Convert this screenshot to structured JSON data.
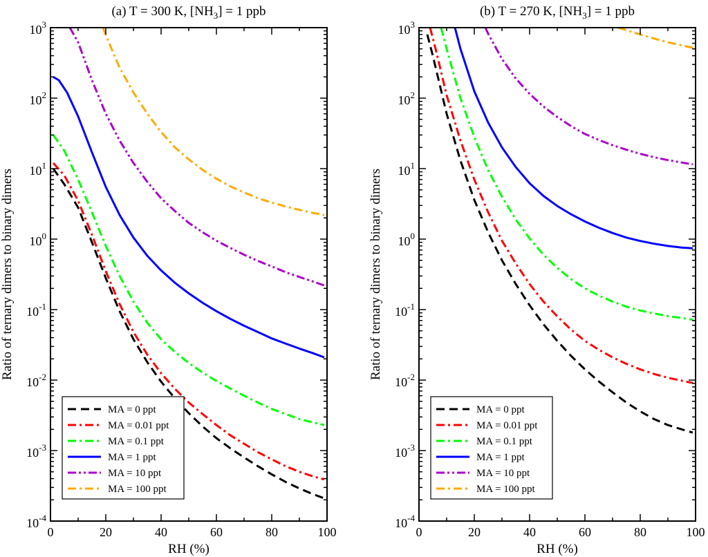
{
  "figure": {
    "ylabel": "Ratio of  ternary dimers to binary dimers",
    "xlabel": "RH (%)"
  },
  "chart_data": [
    {
      "type": "line",
      "panel_id": "a",
      "title": {
        "pre": "(a) T = 300 K, [NH",
        "sub": "3",
        "post": "] = 1 ppb"
      },
      "xlabel": "RH (%)",
      "ylabel": "Ratio of  ternary dimers to binary dimers",
      "xlim": [
        0,
        100
      ],
      "ylim": [
        0.0001,
        1000
      ],
      "yscale": "log",
      "xticks": [
        0,
        20,
        40,
        60,
        80,
        100
      ],
      "ytick_labels": [
        {
          "base": "10",
          "exp": "-4",
          "value": 0.0001
        },
        {
          "base": "10",
          "exp": "-3",
          "value": 0.001
        },
        {
          "base": "10",
          "exp": "-2",
          "value": 0.01
        },
        {
          "base": "10",
          "exp": "-1",
          "value": 0.1
        },
        {
          "base": "10",
          "exp": "0",
          "value": 1
        },
        {
          "base": "10",
          "exp": "1",
          "value": 10
        },
        {
          "base": "10",
          "exp": "2",
          "value": 100
        },
        {
          "base": "10",
          "exp": "3",
          "value": 1000
        }
      ],
      "legend_position": "bottom-left",
      "series": [
        {
          "name": "MA = 0 ppt",
          "color": "#000000",
          "dash": "dash",
          "x": [
            1,
            5,
            10,
            15,
            20,
            25,
            30,
            35,
            40,
            45,
            50,
            55,
            60,
            65,
            70,
            75,
            80,
            85,
            90,
            95,
            99
          ],
          "y": [
            10,
            6,
            2.8,
            0.9,
            0.28,
            0.095,
            0.038,
            0.018,
            0.0095,
            0.0055,
            0.0034,
            0.0022,
            0.0015,
            0.00108,
            0.0008,
            0.0006,
            0.00046,
            0.00036,
            0.00029,
            0.00024,
            0.00021
          ]
        },
        {
          "name": "MA = 0.01 ppt",
          "color": "#ff0000",
          "dash": "dashdot",
          "x": [
            1,
            5,
            10,
            15,
            20,
            25,
            30,
            35,
            40,
            45,
            50,
            55,
            60,
            65,
            70,
            75,
            80,
            85,
            90,
            95,
            99
          ],
          "y": [
            12,
            8,
            3.5,
            1.15,
            0.35,
            0.12,
            0.048,
            0.023,
            0.0125,
            0.0075,
            0.0048,
            0.0033,
            0.0023,
            0.00165,
            0.00125,
            0.00095,
            0.00075,
            0.0006,
            0.0005,
            0.00043,
            0.00039
          ]
        },
        {
          "name": "MA = 0.1 ppt",
          "color": "#00ff00",
          "dash": "dashdot",
          "x": [
            1,
            5,
            10,
            15,
            20,
            25,
            30,
            35,
            40,
            45,
            50,
            55,
            60,
            65,
            70,
            75,
            80,
            85,
            90,
            95,
            99
          ],
          "y": [
            30,
            18,
            7,
            2.4,
            0.8,
            0.3,
            0.13,
            0.065,
            0.038,
            0.025,
            0.0175,
            0.0128,
            0.0097,
            0.0076,
            0.006,
            0.0048,
            0.0039,
            0.0033,
            0.0028,
            0.0025,
            0.0023
          ]
        },
        {
          "name": "MA = 1 ppt",
          "color": "#0000ff",
          "dash": "solid",
          "x": [
            1,
            3,
            6,
            10,
            15,
            20,
            25,
            30,
            35,
            40,
            45,
            50,
            55,
            60,
            65,
            70,
            75,
            80,
            85,
            90,
            95,
            99
          ],
          "y": [
            200,
            180,
            120,
            55,
            17,
            5.5,
            2.2,
            1.05,
            0.58,
            0.36,
            0.24,
            0.17,
            0.125,
            0.095,
            0.074,
            0.059,
            0.048,
            0.039,
            0.033,
            0.028,
            0.024,
            0.021
          ]
        },
        {
          "name": "MA = 10 ppt",
          "color": "#aa00cc",
          "dash": "dashdotdot",
          "x": [
            7,
            10,
            15,
            20,
            25,
            30,
            35,
            40,
            45,
            50,
            55,
            60,
            65,
            70,
            75,
            80,
            85,
            90,
            95,
            99
          ],
          "y": [
            1000,
            620,
            180,
            60,
            25,
            12,
            6.5,
            3.8,
            2.5,
            1.7,
            1.25,
            0.95,
            0.75,
            0.6,
            0.49,
            0.41,
            0.34,
            0.29,
            0.25,
            0.22
          ]
        },
        {
          "name": "MA = 100 ppt",
          "color": "#ffaa00",
          "dash": "dashdot",
          "x": [
            19,
            20,
            25,
            30,
            35,
            40,
            45,
            50,
            55,
            60,
            65,
            70,
            75,
            80,
            85,
            90,
            95,
            99
          ],
          "y": [
            1000,
            780,
            270,
            120,
            60,
            33,
            20,
            13.5,
            9.6,
            7.2,
            5.6,
            4.6,
            3.8,
            3.3,
            2.9,
            2.6,
            2.35,
            2.2
          ]
        }
      ]
    },
    {
      "type": "line",
      "panel_id": "b",
      "title": {
        "pre": "(b) T = 270 K, [NH",
        "sub": "3",
        "post": "] = 1 ppb"
      },
      "xlabel": "RH (%)",
      "ylabel": "Ratio of  ternary dimers to binary dimers",
      "xlim": [
        0,
        100
      ],
      "ylim": [
        0.0001,
        1000
      ],
      "yscale": "log",
      "xticks": [
        0,
        20,
        40,
        60,
        80,
        100
      ],
      "ytick_labels": [
        {
          "base": "10",
          "exp": "-4",
          "value": 0.0001
        },
        {
          "base": "10",
          "exp": "-3",
          "value": 0.001
        },
        {
          "base": "10",
          "exp": "-2",
          "value": 0.01
        },
        {
          "base": "10",
          "exp": "-1",
          "value": 0.1
        },
        {
          "base": "10",
          "exp": "0",
          "value": 1
        },
        {
          "base": "10",
          "exp": "1",
          "value": 10
        },
        {
          "base": "10",
          "exp": "2",
          "value": 100
        },
        {
          "base": "10",
          "exp": "3",
          "value": 1000
        }
      ],
      "legend_position": "bottom-left",
      "series": [
        {
          "name": "MA = 0 ppt",
          "color": "#000000",
          "dash": "dash",
          "x": [
            3,
            5,
            10,
            15,
            20,
            25,
            30,
            35,
            40,
            45,
            50,
            55,
            60,
            65,
            70,
            75,
            80,
            85,
            90,
            95,
            99
          ],
          "y": [
            800,
            400,
            60,
            13,
            3.6,
            1.25,
            0.5,
            0.23,
            0.115,
            0.062,
            0.036,
            0.022,
            0.0142,
            0.0096,
            0.0067,
            0.0048,
            0.0036,
            0.0028,
            0.0023,
            0.002,
            0.0018
          ]
        },
        {
          "name": "MA = 0.01 ppt",
          "color": "#ff0000",
          "dash": "dashdot",
          "x": [
            4,
            6,
            10,
            15,
            20,
            25,
            30,
            35,
            40,
            45,
            50,
            55,
            60,
            65,
            70,
            75,
            80,
            85,
            90,
            95,
            99
          ],
          "y": [
            1000,
            500,
            110,
            25,
            7,
            2.4,
            0.95,
            0.45,
            0.23,
            0.13,
            0.08,
            0.052,
            0.036,
            0.027,
            0.021,
            0.017,
            0.0142,
            0.0122,
            0.0108,
            0.0098,
            0.0091
          ]
        },
        {
          "name": "MA = 0.1 ppt",
          "color": "#00ff00",
          "dash": "dashdot",
          "x": [
            8,
            10,
            15,
            20,
            25,
            30,
            35,
            40,
            45,
            50,
            55,
            60,
            65,
            70,
            75,
            80,
            85,
            90,
            95,
            99
          ],
          "y": [
            1000,
            500,
            100,
            28,
            9.5,
            4,
            1.9,
            1.02,
            0.6,
            0.39,
            0.27,
            0.2,
            0.158,
            0.13,
            0.11,
            0.097,
            0.088,
            0.081,
            0.076,
            0.072
          ]
        },
        {
          "name": "MA = 1 ppt",
          "color": "#0000ff",
          "dash": "solid",
          "x": [
            13,
            15,
            20,
            25,
            30,
            35,
            40,
            45,
            50,
            55,
            60,
            65,
            70,
            75,
            80,
            85,
            90,
            95,
            99
          ],
          "y": [
            1000,
            500,
            125,
            45,
            20,
            10.5,
            6.2,
            4.1,
            2.95,
            2.25,
            1.78,
            1.45,
            1.22,
            1.05,
            0.94,
            0.86,
            0.8,
            0.76,
            0.74
          ]
        },
        {
          "name": "MA = 10 ppt",
          "color": "#aa00cc",
          "dash": "dashdotdot",
          "x": [
            24,
            25,
            30,
            35,
            40,
            45,
            50,
            55,
            60,
            65,
            70,
            75,
            80,
            85,
            90,
            95,
            99
          ],
          "y": [
            1000,
            820,
            360,
            190,
            115,
            76,
            54,
            40,
            31,
            25.5,
            21.5,
            18.5,
            16.2,
            14.5,
            13.2,
            12.2,
            11.5
          ]
        },
        {
          "name": "MA = 100 ppt",
          "color": "#ffaa00",
          "dash": "dashdot",
          "x": [
            72,
            75,
            80,
            85,
            90,
            95,
            99
          ],
          "y": [
            1000,
            920,
            800,
            700,
            620,
            560,
            520
          ]
        }
      ]
    }
  ]
}
